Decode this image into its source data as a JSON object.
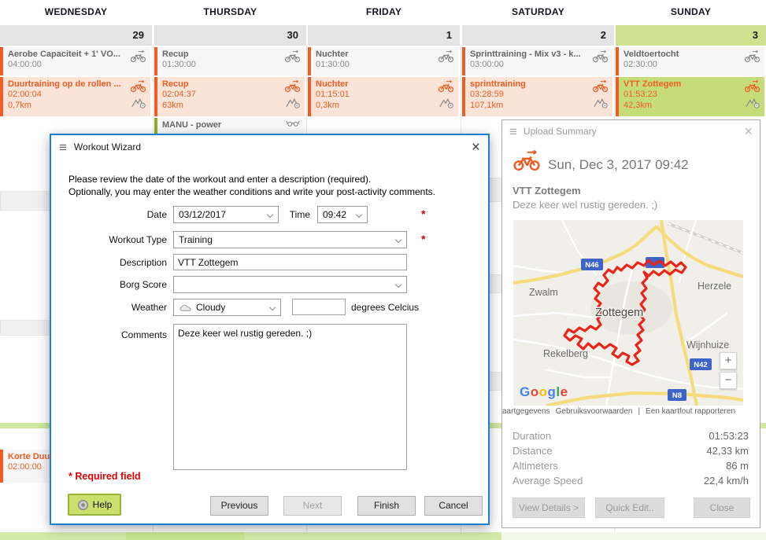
{
  "calendar": {
    "days": [
      {
        "name": "WEDNESDAY",
        "number": "29",
        "planned": {
          "title": "Aerobe Capaciteit + 1' VO...",
          "time": "04:00:00"
        },
        "actual": {
          "title": "Duurtraining op de rollen ...",
          "time": "02:00:04",
          "distance": "0,7km"
        }
      },
      {
        "name": "THURSDAY",
        "number": "30",
        "planned": {
          "title": "Recup",
          "time": "01:30:00"
        },
        "actual": {
          "title": "Recup",
          "time": "02:04:37",
          "distance": "63km"
        },
        "extra": {
          "title": "MANU - power"
        }
      },
      {
        "name": "FRIDAY",
        "number": "1",
        "planned": {
          "title": "Nuchter",
          "time": "01:30:00"
        },
        "actual": {
          "title": "Nuchter",
          "time": "01:15:01",
          "distance": "0,3km"
        }
      },
      {
        "name": "SATURDAY",
        "number": "2",
        "planned": {
          "title": "Sprinttraining - Mix v3 - k...",
          "time": "03:00:00"
        },
        "actual": {
          "title": "sprinttraining",
          "time": "03:28:59",
          "distance": "107,1km"
        }
      },
      {
        "name": "SUNDAY",
        "number": "3",
        "planned": {
          "title": "Veldtoertocht",
          "time": "02:30:00"
        },
        "actual": {
          "title": "VTT Zottegem",
          "time": "01:53:23",
          "distance": "42,3km"
        }
      }
    ],
    "more_event": {
      "title": "Korte Duu",
      "time": "02:00:00"
    }
  },
  "dialog": {
    "title": "Workout Wizard",
    "intro_line1": "Please review the date of the workout and enter a description (required).",
    "intro_line2": "Optionally, you may enter the weather conditions and write your post-activity comments.",
    "fields": {
      "date_label": "Date",
      "date_value": "03/12/2017",
      "time_label": "Time",
      "time_value": "09:42",
      "workout_type_label": "Workout Type",
      "workout_type_value": "Training",
      "description_label": "Description",
      "description_value": "VTT Zottegem",
      "borg_label": "Borg Score",
      "borg_value": "",
      "weather_label": "Weather",
      "weather_value": "Cloudy",
      "degrees_label": "degrees Celcius",
      "comments_label": "Comments",
      "comments_value": "Deze keer wel rustig gereden. ;)",
      "required_mark": "*"
    },
    "required_note": "* Required field",
    "buttons": {
      "help": "Help",
      "previous": "Previous",
      "next": "Next",
      "finish": "Finish",
      "cancel": "Cancel"
    },
    "close_glyph": "×",
    "menu_glyph": "≡"
  },
  "upload_panel": {
    "title": "Upload Summary",
    "date_line": "Sun, Dec 3, 2017 09:42",
    "activity_title": "VTT Zottegem",
    "activity_comment": "Deze keer wel rustig gereden. ;)",
    "map": {
      "city": "Zottegem",
      "labels": [
        "Zwalm",
        "Herzele",
        "Rekelberg",
        "Wijnhuize"
      ],
      "shields": [
        "N46",
        "N42",
        "N8"
      ],
      "logo": "Google",
      "zoom_in": "+",
      "zoom_out": "−",
      "attribution": [
        "aartgegevens",
        "Gebruiksvoorwaarden",
        "Een kaartfout rapporteren"
      ],
      "attribution_sep": "|"
    },
    "stats": [
      {
        "label": "Duration",
        "value": "01:53:23"
      },
      {
        "label": "Distance",
        "value": "42,33 km"
      },
      {
        "label": "Altimeters",
        "value": "86 m"
      },
      {
        "label": "Average Speed",
        "value": "22,4 km/h"
      }
    ],
    "buttons": {
      "view_details": "View Details >",
      "quick_edit": "Quick Edit..",
      "close": "Close"
    },
    "close_glyph": "×",
    "menu_glyph": "≡"
  }
}
